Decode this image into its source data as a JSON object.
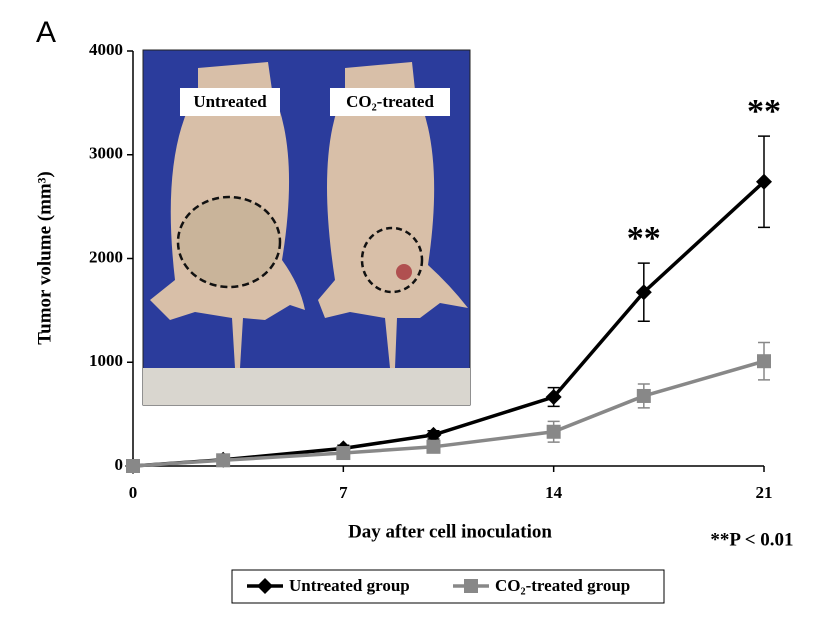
{
  "chart_data": {
    "type": "line",
    "panel_label": "A",
    "xlabel": "Day after cell inoculation",
    "ylabel": "Tumor volume (mm³)",
    "x": [
      0,
      3,
      7,
      10,
      14,
      17,
      21
    ],
    "xlim": [
      0,
      21
    ],
    "xticks": [
      0,
      7,
      14,
      21
    ],
    "ylim": [
      0,
      4000
    ],
    "yticks": [
      0,
      1000,
      2000,
      3000,
      4000
    ],
    "series": [
      {
        "name": "Untreated group",
        "color": "#000000",
        "marker": "diamond",
        "values": [
          0,
          60,
          170,
          300,
          665,
          1675,
          2740
        ],
        "errors": [
          0,
          10,
          30,
          40,
          90,
          280,
          440
        ]
      },
      {
        "name": "CO₂-treated group",
        "color": "#888888",
        "marker": "square",
        "values": [
          0,
          55,
          125,
          185,
          330,
          675,
          1010
        ],
        "errors": [
          0,
          10,
          20,
          30,
          100,
          115,
          180
        ]
      }
    ],
    "annotations": [
      {
        "text": "**",
        "x": 17
      },
      {
        "text": "**",
        "x": 21
      }
    ],
    "significance": "**P < 0.01",
    "inset_labels": [
      "Untreated",
      "CO₂-treated"
    ],
    "legend": "bottom"
  }
}
